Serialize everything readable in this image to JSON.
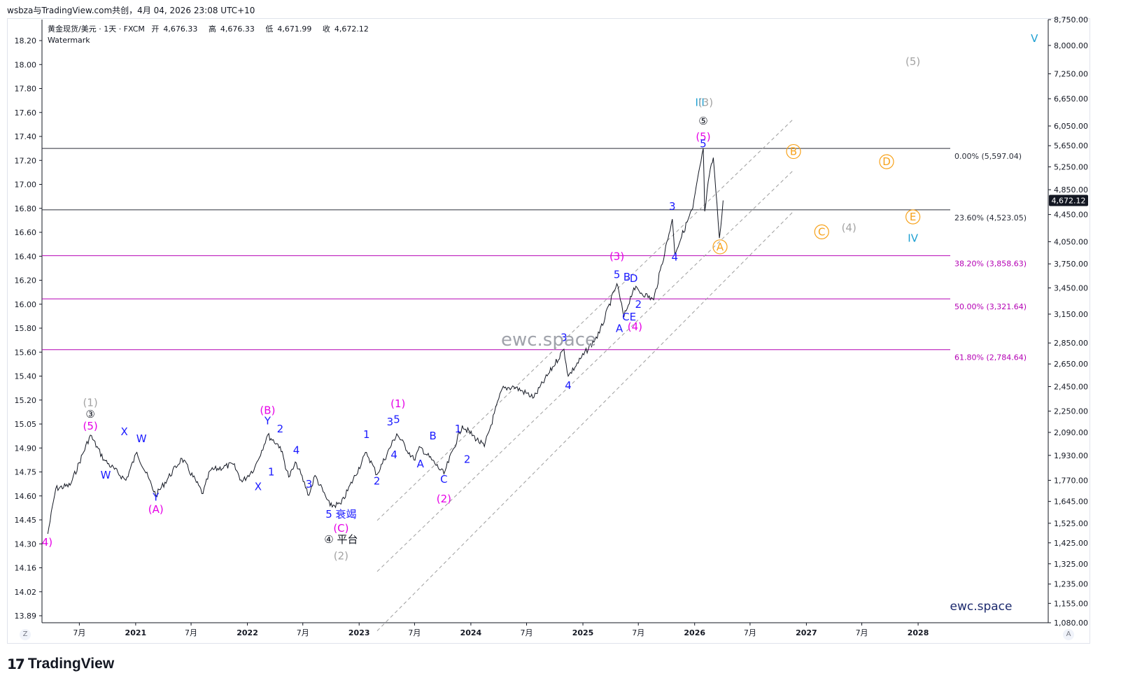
{
  "header": {
    "attribution": "wsbza与TradingView.com共创，4月 04, 2026 23:08 UTC+10"
  },
  "legend": {
    "symbol": "黄金现货/美元 · 1天 · FXCM",
    "open_label": "开",
    "open": "4,676.33",
    "high_label": "高",
    "high": "4,676.33",
    "low_label": "低",
    "low": "4,671.99",
    "close_label": "收",
    "close": "4,672.12",
    "watermark_label": "Watermark"
  },
  "watermarks": {
    "center": "ewc.space",
    "bottom_right": "ewc.space"
  },
  "price_badge": "4,672.12",
  "corner_left": "Z",
  "corner_right": "A",
  "footer": {
    "logo_text": "TradingView"
  },
  "colors": {
    "magenta": "#e600e6",
    "blue": "#1a1aff",
    "gray": "#a3a3a3",
    "cyan": "#1ea0d2",
    "orange": "#f7a21b",
    "fib_black": "#2a2e39",
    "fib_purple": "#b400b4",
    "channel": "#9e9e9e"
  },
  "chart_data": {
    "type": "line",
    "symbol": "XAUUSD",
    "timeframe": "1D",
    "y_scale": "log",
    "ylim": [
      1080,
      8750
    ],
    "right_axis_ticks": [
      "8,750.00",
      "8,000.00",
      "7,250.00",
      "6,650.00",
      "6,050.00",
      "5,650.00",
      "5,250.00",
      "4,850.00",
      "4,450.00",
      "4,050.00",
      "3,750.00",
      "3,450.00",
      "3,150.00",
      "2,850.00",
      "2,650.00",
      "2,450.00",
      "2,250.00",
      "2,090.00",
      "1,930.00",
      "1,770.00",
      "1,645.00",
      "1,525.00",
      "1,425.00",
      "1,325.00",
      "1,235.00",
      "1,155.00",
      "1,080.00"
    ],
    "left_axis_ticks": [
      "18.20",
      "18.00",
      "17.80",
      "17.60",
      "17.40",
      "17.20",
      "17.00",
      "16.80",
      "16.60",
      "16.40",
      "16.20",
      "16.00",
      "15.80",
      "15.60",
      "15.40",
      "15.20",
      "15.05",
      "14.90",
      "14.75",
      "14.60",
      "14.45",
      "14.30",
      "14.16",
      "14.02",
      "13.89"
    ],
    "x_ticks": [
      "7月",
      "2021",
      "7月",
      "2022",
      "7月",
      "2023",
      "7月",
      "2024",
      "7月",
      "2025",
      "7月",
      "2026",
      "7月",
      "2027",
      "7月",
      "2028"
    ],
    "price_series": [
      [
        "2020-03-20",
        1470
      ],
      [
        "2020-04-15",
        1720
      ],
      [
        "2020-06-01",
        1740
      ],
      [
        "2020-08-06",
        2070
      ],
      [
        "2020-09-20",
        1900
      ],
      [
        "2020-11-30",
        1770
      ],
      [
        "2021-01-05",
        1950
      ],
      [
        "2021-03-08",
        1680
      ],
      [
        "2021-06-01",
        1910
      ],
      [
        "2021-08-09",
        1690
      ],
      [
        "2021-09-01",
        1830
      ],
      [
        "2021-11-16",
        1870
      ],
      [
        "2021-12-15",
        1760
      ],
      [
        "2022-01-25",
        1850
      ],
      [
        "2022-03-08",
        2070
      ],
      [
        "2022-04-18",
        1990
      ],
      [
        "2022-05-16",
        1790
      ],
      [
        "2022-06-10",
        1880
      ],
      [
        "2022-07-21",
        1680
      ],
      [
        "2022-08-10",
        1800
      ],
      [
        "2022-09-28",
        1620
      ],
      [
        "2022-11-03",
        1630
      ],
      [
        "2023-01-25",
        1950
      ],
      [
        "2023-02-28",
        1805
      ],
      [
        "2023-05-04",
        2080
      ],
      [
        "2023-06-29",
        1900
      ],
      [
        "2023-07-20",
        1985
      ],
      [
        "2023-10-05",
        1810
      ],
      [
        "2023-12-04",
        2140
      ],
      [
        "2024-02-14",
        1990
      ],
      [
        "2024-04-12",
        2430
      ],
      [
        "2024-05-20",
        2450
      ],
      [
        "2024-07-25",
        2360
      ],
      [
        "2024-10-31",
        2790
      ],
      [
        "2024-11-14",
        2540
      ],
      [
        "2025-02-24",
        2950
      ],
      [
        "2025-04-22",
        3500
      ],
      [
        "2025-05-15",
        3120
      ],
      [
        "2025-06-16",
        3450
      ],
      [
        "2025-08-20",
        3310
      ],
      [
        "2025-10-20",
        4380
      ],
      [
        "2025-10-28",
        3890
      ],
      [
        "2025-12-26",
        4550
      ],
      [
        "2026-01-29",
        5597
      ],
      [
        "2026-02-03",
        4500
      ],
      [
        "2026-02-18",
        5100
      ],
      [
        "2026-03-03",
        5420
      ],
      [
        "2026-03-23",
        4100
      ],
      [
        "2026-04-04",
        4672.12
      ]
    ],
    "fib_levels": [
      {
        "label": "0.00% (5,597.04)",
        "price": 5597.04,
        "color": "#2a2e39"
      },
      {
        "label": "23.60% (4,523.05)",
        "price": 4523.05,
        "color": "#2a2e39"
      },
      {
        "label": "38.20% (3,858.63)",
        "price": 3858.63,
        "color": "#b400b4"
      },
      {
        "label": "50.00% (3,321.64)",
        "price": 3321.64,
        "color": "#b400b4"
      },
      {
        "label": "61.80% (2,784.64)",
        "price": 2784.64,
        "color": "#b400b4"
      }
    ],
    "wave_labels": [
      {
        "t": "4)",
        "d": "2020-03-18",
        "p": 1410,
        "c": "magenta"
      },
      {
        "t": "(1)",
        "d": "2020-08-06",
        "p": 2290,
        "c": "gray"
      },
      {
        "t": "③",
        "d": "2020-08-06",
        "p": 2200,
        "c": "black",
        "circ": true
      },
      {
        "t": "(5)",
        "d": "2020-08-06",
        "p": 2110,
        "c": "magenta"
      },
      {
        "t": "W",
        "d": "2020-09-25",
        "p": 1780,
        "c": "blue"
      },
      {
        "t": "X",
        "d": "2020-11-25",
        "p": 2070,
        "c": "blue"
      },
      {
        "t": "W",
        "d": "2021-01-20",
        "p": 2020,
        "c": "blue"
      },
      {
        "t": "Y",
        "d": "2021-03-08",
        "p": 1650,
        "c": "blue"
      },
      {
        "t": "(A)",
        "d": "2021-03-08",
        "p": 1580,
        "c": "magenta"
      },
      {
        "t": "(B)",
        "d": "2022-03-08",
        "p": 2230,
        "c": "magenta"
      },
      {
        "t": "Y",
        "d": "2022-03-08",
        "p": 2150,
        "c": "blue"
      },
      {
        "t": "2",
        "d": "2022-04-18",
        "p": 2090,
        "c": "blue"
      },
      {
        "t": "4",
        "d": "2022-06-10",
        "p": 1940,
        "c": "blue"
      },
      {
        "t": "1",
        "d": "2022-03-20",
        "p": 1800,
        "c": "blue"
      },
      {
        "t": "X",
        "d": "2022-02-05",
        "p": 1710,
        "c": "blue"
      },
      {
        "t": "3",
        "d": "2022-07-21",
        "p": 1725,
        "c": "blue"
      },
      {
        "t": "1",
        "d": "2023-01-25",
        "p": 2050,
        "c": "blue"
      },
      {
        "t": "2",
        "d": "2023-02-28",
        "p": 1745,
        "c": "blue"
      },
      {
        "t": "3",
        "d": "2023-04-12",
        "p": 2140,
        "c": "blue"
      },
      {
        "t": "5",
        "d": "2023-05-04",
        "p": 2160,
        "c": "blue"
      },
      {
        "t": "4",
        "d": "2023-04-25",
        "p": 1910,
        "c": "blue"
      },
      {
        "t": "(1)",
        "d": "2023-05-08",
        "p": 2280,
        "c": "magenta"
      },
      {
        "t": "A",
        "d": "2023-07-20",
        "p": 1850,
        "c": "blue"
      },
      {
        "t": "B",
        "d": "2023-08-30",
        "p": 2040,
        "c": "blue"
      },
      {
        "t": "1",
        "d": "2023-11-20",
        "p": 2090,
        "c": "blue"
      },
      {
        "t": "2",
        "d": "2023-12-20",
        "p": 1880,
        "c": "blue"
      },
      {
        "t": "C",
        "d": "2023-10-05",
        "p": 1755,
        "c": "blue"
      },
      {
        "t": "(2)",
        "d": "2023-10-05",
        "p": 1640,
        "c": "magenta"
      },
      {
        "t": "5 衰竭",
        "d": "2022-11-03",
        "p": 1555,
        "c": "blue"
      },
      {
        "t": "(C)",
        "d": "2022-11-03",
        "p": 1480,
        "c": "magenta"
      },
      {
        "t": "④ 平台",
        "d": "2022-11-03",
        "p": 1425,
        "c": "black",
        "circ": true
      },
      {
        "t": "(2)",
        "d": "2022-11-03",
        "p": 1345,
        "c": "gray"
      },
      {
        "t": "3",
        "d": "2024-10-31",
        "p": 2870,
        "c": "blue"
      },
      {
        "t": "4",
        "d": "2024-11-14",
        "p": 2430,
        "c": "blue"
      },
      {
        "t": "(3)",
        "d": "2025-04-22",
        "p": 3800,
        "c": "magenta"
      },
      {
        "t": "5",
        "d": "2025-04-22",
        "p": 3570,
        "c": "blue"
      },
      {
        "t": "B",
        "d": "2025-05-25",
        "p": 3540,
        "c": "blue"
      },
      {
        "t": "D",
        "d": "2025-06-16",
        "p": 3520,
        "c": "blue"
      },
      {
        "t": "A",
        "d": "2025-04-30",
        "p": 2960,
        "c": "blue"
      },
      {
        "t": "CE",
        "d": "2025-06-01",
        "p": 3080,
        "c": "blue"
      },
      {
        "t": "(4)",
        "d": "2025-06-20",
        "p": 2980,
        "c": "magenta"
      },
      {
        "t": "2",
        "d": "2025-07-01",
        "p": 3220,
        "c": "blue"
      },
      {
        "t": "3",
        "d": "2025-10-20",
        "p": 4520,
        "c": "blue"
      },
      {
        "t": "4",
        "d": "2025-10-28",
        "p": 3790,
        "c": "blue"
      },
      {
        "t": "III",
        "d": "2026-01-18",
        "p": 6480,
        "c": "cyan"
      },
      {
        "t": "(3)",
        "d": "2026-02-06",
        "p": 6480,
        "c": "gray"
      },
      {
        "t": "⑤",
        "d": "2026-01-29",
        "p": 6080,
        "c": "black",
        "circ": true
      },
      {
        "t": "(5)",
        "d": "2026-01-29",
        "p": 5760,
        "c": "magenta"
      },
      {
        "t": "5",
        "d": "2026-01-29",
        "p": 5620,
        "c": "blue"
      },
      {
        "t": "A",
        "d": "2026-03-25",
        "p": 3930,
        "c": "orange",
        "circ": true
      },
      {
        "t": "B",
        "d": "2026-11-20",
        "p": 5470,
        "c": "orange",
        "circ": true
      },
      {
        "t": "C",
        "d": "2027-02-20",
        "p": 4140,
        "c": "orange",
        "circ": true
      },
      {
        "t": "(4)",
        "d": "2027-05-20",
        "p": 4200,
        "c": "gray"
      },
      {
        "t": "D",
        "d": "2027-09-20",
        "p": 5280,
        "c": "orange",
        "circ": true
      },
      {
        "t": "E",
        "d": "2027-12-15",
        "p": 4360,
        "c": "orange",
        "circ": true
      },
      {
        "t": "IV",
        "d": "2027-12-15",
        "p": 4050,
        "c": "cyan"
      },
      {
        "t": "(5)",
        "d": "2027-12-15",
        "p": 7470,
        "c": "gray"
      },
      {
        "t": "V",
        "d": "2029-01-15",
        "p": 8100,
        "c": "cyan"
      }
    ]
  }
}
